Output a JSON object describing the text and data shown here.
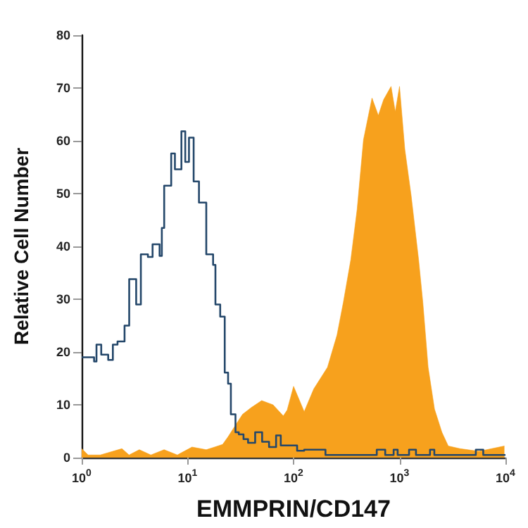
{
  "chart_data": {
    "type": "step",
    "xlabel": "EMMPRIN/CD147",
    "ylabel": "Relative Cell Number",
    "log": "x",
    "xlim": [
      1,
      10000
    ],
    "xticks": [
      {
        "value": 1,
        "label": "10$^{0}$"
      },
      {
        "value": 10,
        "label": "10$^{1}$"
      },
      {
        "value": 100,
        "label": "10$^{2}$"
      },
      {
        "value": 1000,
        "label": "10$^{3}$"
      },
      {
        "value": 10000,
        "label": "10$^{4}$"
      }
    ],
    "ylim": [
      0,
      80
    ],
    "yticks": [
      0,
      10,
      20,
      30,
      40,
      50,
      60,
      70,
      80
    ],
    "grid": false,
    "marker": "none",
    "series": [
      {
        "type": "area",
        "color": "#f7a11d",
        "x": [
          1,
          1.15,
          1.5,
          2.4,
          2.8,
          3.5,
          4.5,
          6,
          8,
          11,
          15,
          18,
          21.4,
          24,
          28,
          33,
          40,
          50,
          64,
          80,
          87,
          100,
          126,
          155,
          209,
          257,
          295,
          347,
          398,
          457,
          550,
          631,
          708,
          832,
          912,
          1000,
          1122,
          1288,
          1514,
          1660,
          1862,
          2138,
          2512,
          2884,
          3715,
          5623,
          9772
        ],
        "values": [
          1.7,
          0.5,
          0.5,
          1.7,
          0.5,
          1.5,
          0.5,
          1.5,
          0.5,
          2,
          1.5,
          2,
          2.5,
          3.9,
          6,
          8.2,
          9.5,
          10.8,
          10,
          7.9,
          9,
          13.5,
          8.7,
          13,
          17.1,
          23.2,
          29.4,
          37.5,
          47,
          60.2,
          68.1,
          64.8,
          67.8,
          70.3,
          65.5,
          70.3,
          58.4,
          49.6,
          37.5,
          29.4,
          17.1,
          9.2,
          4.8,
          2.2,
          1.7,
          1.2,
          2.2
        ]
      },
      {
        "color": "#24476a",
        "x": [
          1,
          1.31,
          1.38,
          1.53,
          1.78,
          1.97,
          2.18,
          2.54,
          2.81,
          3.27,
          3.62,
          4.22,
          4.67,
          5.44,
          5.71,
          6.01,
          7,
          7.59,
          8.74,
          9.5,
          10.3,
          11.4,
          12.8,
          15,
          17.4,
          18.3,
          20.3,
          22.4,
          24.1,
          25.6,
          28.3,
          30.4,
          33.7,
          37.2,
          43.4,
          50.5,
          58.7,
          68.4,
          75.7,
          108,
          126,
          200,
          610,
          733,
          880,
          960,
          1230,
          1430,
          1940,
          2130,
          5250,
          6170,
          10000
        ],
        "values": [
          19,
          18.2,
          21.4,
          19.5,
          18.5,
          21.4,
          22,
          25,
          33.8,
          29,
          38.5,
          38,
          40.4,
          38.2,
          43.5,
          51.5,
          57.6,
          54.6,
          61.8,
          56,
          60.6,
          52.3,
          48.3,
          38.5,
          36.5,
          29,
          26.7,
          16.1,
          14,
          8.2,
          4.8,
          4.4,
          3.5,
          2.8,
          4.8,
          3,
          2,
          4.2,
          2.3,
          1.3,
          1.5,
          0.5,
          1.5,
          0.5,
          1.5,
          0.5,
          1.5,
          0.5,
          1.5,
          0.5,
          1.5,
          0.5,
          0.5
        ]
      }
    ]
  }
}
